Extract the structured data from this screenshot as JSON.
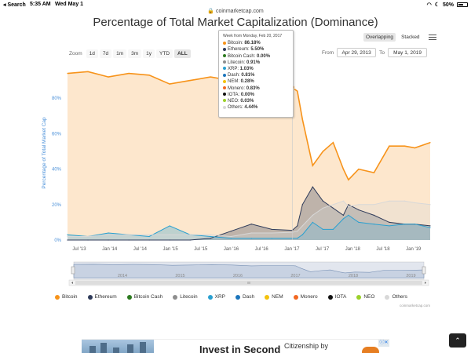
{
  "status_bar": {
    "back": "◂ Search",
    "time": "5:35 AM",
    "date": "Wed May 1",
    "battery": "50%"
  },
  "browser": {
    "url": "coinmarketcap.com"
  },
  "page": {
    "title": "Percentage of Total Market Capitalization (Dominance)"
  },
  "view_toggle": {
    "overlapping": "Overlapping",
    "stacked": "Stacked",
    "active": "Overlapping"
  },
  "zoom": {
    "label": "Zoom",
    "buttons": [
      "1d",
      "7d",
      "1m",
      "3m",
      "1y",
      "YTD",
      "ALL"
    ],
    "active": "ALL"
  },
  "range": {
    "from_label": "From",
    "from_value": "Apr 29, 2013",
    "to_label": "To",
    "to_value": "May 1, 2019"
  },
  "tooltip": {
    "header": "Week from Monday, Feb 20, 2017",
    "rows": [
      {
        "name": "Bitcoin",
        "value": "86.18%",
        "color": "#f7931a"
      },
      {
        "name": "Ethereum",
        "value": "5.50%",
        "color": "#2f3b5a"
      },
      {
        "name": "Bitcoin Cash",
        "value": "0.00%",
        "color": "#2c7a1f"
      },
      {
        "name": "Litecoin",
        "value": "0.91%",
        "color": "#8e8e8e"
      },
      {
        "name": "XRP",
        "value": "1.03%",
        "color": "#2aa0d0"
      },
      {
        "name": "Dash",
        "value": "0.81%",
        "color": "#1c75bc"
      },
      {
        "name": "NEM",
        "value": "0.28%",
        "color": "#f4c20d"
      },
      {
        "name": "Monero",
        "value": "0.83%",
        "color": "#f26822"
      },
      {
        "name": "IOTA",
        "value": "0.00%",
        "color": "#111111"
      },
      {
        "name": "NEO",
        "value": "0.03%",
        "color": "#9bd12a"
      },
      {
        "name": "Others",
        "value": "4.44%",
        "color": "#d8d8d8"
      }
    ]
  },
  "chart_data": {
    "type": "area",
    "ylabel": "Percentage of Total Market Cap",
    "y_ticks": [
      "0%",
      "20%",
      "40%",
      "60%",
      "80%"
    ],
    "ylim": [
      0,
      100
    ],
    "x_ticks": [
      "Jul '13",
      "Jan '14",
      "Jul '14",
      "Jan '15",
      "Jul '15",
      "Jan '16",
      "Jul '16",
      "Jan '17",
      "Jul '17",
      "Jan '18",
      "Jul '18",
      "Jan '19"
    ],
    "x_range": [
      "2013-06",
      "2019-05"
    ],
    "navigator_ticks": [
      "2014",
      "2015",
      "2016",
      "2017",
      "2018",
      "2019"
    ],
    "legend_position": "bottom",
    "grid": false,
    "x": [
      "2013-06",
      "2013-10",
      "2014-02",
      "2014-06",
      "2014-10",
      "2015-02",
      "2015-06",
      "2015-10",
      "2016-02",
      "2016-06",
      "2016-10",
      "2017-02",
      "2017-03",
      "2017-04",
      "2017-06",
      "2017-08",
      "2017-10",
      "2017-12",
      "2018-01",
      "2018-03",
      "2018-06",
      "2018-09",
      "2018-12",
      "2019-02",
      "2019-05"
    ],
    "series": [
      {
        "name": "Bitcoin",
        "color": "#f7931a",
        "values": [
          94,
          95,
          92,
          94,
          93,
          88,
          90,
          92,
          90,
          84,
          86,
          86,
          84,
          68,
          42,
          50,
          55,
          40,
          34,
          40,
          38,
          53,
          53,
          52,
          55
        ]
      },
      {
        "name": "Ethereum",
        "color": "#2f3b5a",
        "values": [
          0,
          0,
          0,
          0,
          0,
          0,
          0,
          1,
          5,
          9,
          6,
          5.5,
          8,
          20,
          30,
          22,
          18,
          14,
          20,
          17,
          14,
          10,
          9,
          9,
          8
        ]
      },
      {
        "name": "XRP",
        "color": "#2aa0d0",
        "values": [
          3,
          2,
          4,
          3,
          2,
          8,
          3,
          2,
          1,
          1,
          1,
          1,
          1,
          3,
          10,
          6,
          6,
          12,
          14,
          10,
          9,
          8,
          9,
          9,
          7
        ]
      },
      {
        "name": "Others",
        "color": "#d8d8d8",
        "values": [
          2,
          2,
          3,
          3,
          3,
          3,
          3,
          3,
          2,
          4,
          4,
          4.4,
          5,
          8,
          14,
          18,
          20,
          22,
          19,
          20,
          20,
          22,
          22,
          21,
          20
        ]
      }
    ]
  },
  "legend": [
    {
      "name": "Bitcoin",
      "color": "#f7931a"
    },
    {
      "name": "Ethereum",
      "color": "#2f3b5a"
    },
    {
      "name": "Bitcoin Cash",
      "color": "#2c7a1f"
    },
    {
      "name": "Litecoin",
      "color": "#8e8e8e"
    },
    {
      "name": "XRP",
      "color": "#2aa0d0"
    },
    {
      "name": "Dash",
      "color": "#1c75bc"
    },
    {
      "name": "NEM",
      "color": "#f4c20d"
    },
    {
      "name": "Monero",
      "color": "#f26822"
    },
    {
      "name": "IOTA",
      "color": "#111111"
    },
    {
      "name": "NEO",
      "color": "#9bd12a"
    },
    {
      "name": "Others",
      "color": "#d8d8d8"
    }
  ],
  "credits": "coinmarketcap.com",
  "ad": {
    "title": "Invest in Second",
    "text": "Citizenship by"
  },
  "scroll_top": {
    "icon": "chevron-up-icon"
  }
}
